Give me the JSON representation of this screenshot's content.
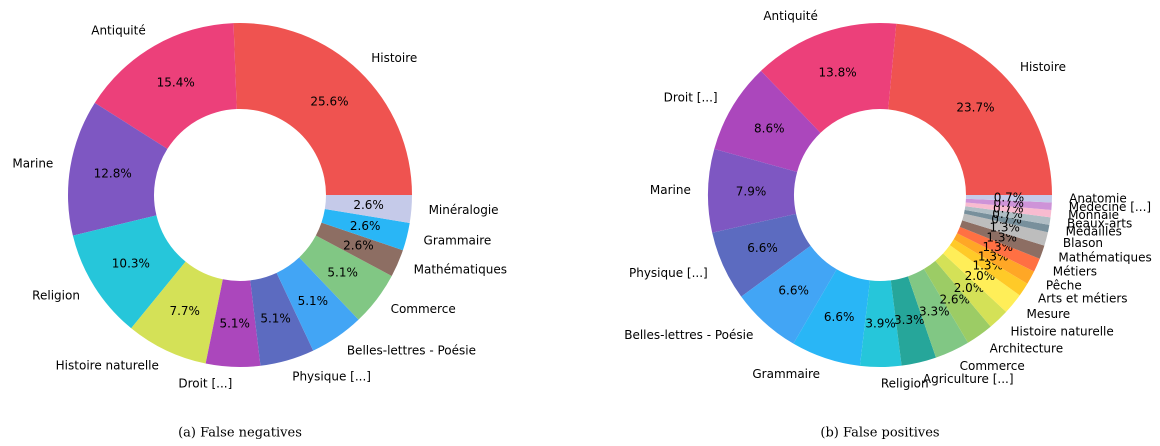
{
  "chart_data": [
    {
      "type": "donut",
      "caption": "(a) False negatives",
      "categories": [
        "Histoire",
        "Antiquité",
        "Marine",
        "Religion",
        "Histoire naturelle",
        "Droit [...]",
        "Physique [...]",
        "Belles-lettres - Poésie",
        "Commerce",
        "Mathématiques",
        "Grammaire",
        "Minéralogie"
      ],
      "values": [
        25.6,
        15.4,
        12.8,
        10.3,
        7.7,
        5.1,
        5.1,
        5.1,
        5.1,
        2.6,
        2.6,
        2.6
      ],
      "value_labels": [
        "25.6%",
        "15.4%",
        "12.8%",
        "10.3%",
        "7.7%",
        "5.1%",
        "5.1%",
        "5.1%",
        "5.1%",
        "2.6%",
        "2.6%",
        "2.6%"
      ],
      "colors": [
        "#ef5350",
        "#ec407a",
        "#7e57c2",
        "#26c6da",
        "#d4e157",
        "#ab47bc",
        "#5c6bc0",
        "#42a5f5",
        "#81c784",
        "#8d6e63",
        "#29b6f6",
        "#c5cae9"
      ]
    },
    {
      "type": "donut",
      "caption": "(b) False positives",
      "categories": [
        "Histoire",
        "Antiquité",
        "Droit [...]",
        "Marine",
        "Physique [...]",
        "Belles-lettres - Poésie",
        "Grammaire",
        "Religion",
        "Agriculture [...]",
        "Commerce",
        "Architecture",
        "Histoire naturelle",
        "Mesure",
        "Arts et métiers",
        "Pêche",
        "Métiers",
        "Mathématiques",
        "Blason",
        "Médailles",
        "Beaux-arts",
        "Monnaie",
        "Médecine [...]",
        "Anatomie"
      ],
      "values": [
        23.7,
        13.8,
        8.6,
        7.9,
        6.6,
        6.6,
        6.6,
        3.9,
        3.3,
        3.3,
        2.6,
        2.0,
        2.0,
        1.3,
        1.3,
        1.3,
        1.3,
        1.3,
        0.7,
        0.7,
        0.7,
        0.7,
        0.7
      ],
      "value_labels": [
        "23.7%",
        "13.8%",
        "8.6%",
        "7.9%",
        "6.6%",
        "6.6%",
        "6.6%",
        "3.9%",
        "3.3%",
        "3.3%",
        "2.6%",
        "2.0%",
        "2.0%",
        "1.3%",
        "1.3%",
        "1.3%",
        "1.3%",
        "1.3%",
        "0.7%",
        "0.7%",
        "0.7%",
        "0.7%",
        "0.7%"
      ],
      "colors": [
        "#ef5350",
        "#ec407a",
        "#ab47bc",
        "#7e57c2",
        "#5c6bc0",
        "#42a5f5",
        "#29b6f6",
        "#26c6da",
        "#26a69a",
        "#81c784",
        "#9ccc65",
        "#d4e157",
        "#ffee58",
        "#ffca28",
        "#ffa726",
        "#ff7043",
        "#8d6e63",
        "#bdbdbd",
        "#78909c",
        "#b0bec5",
        "#f8bbd0",
        "#ce93d8",
        "#c5cae9"
      ]
    }
  ]
}
